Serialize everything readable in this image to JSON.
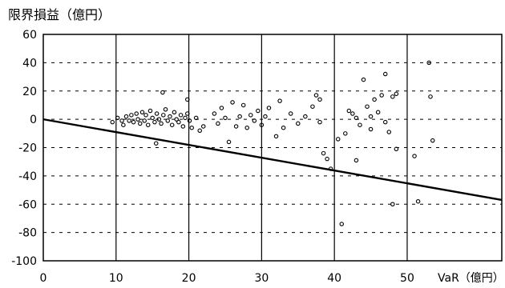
{
  "colors": {
    "axis": "#000000",
    "grid_dash": "#000000",
    "grid_solid": "#000000",
    "points": "#000000"
  },
  "chart_data": {
    "type": "scatter",
    "title": "",
    "ylabel": "限界損益（億円）",
    "xlabel": "VaR（億円）",
    "xlim": [
      0,
      63
    ],
    "ylim": [
      -100,
      60
    ],
    "x_ticks": [
      0,
      10,
      20,
      30,
      40,
      50
    ],
    "y_ticks": [
      60,
      40,
      20,
      0,
      -20,
      -40,
      -60,
      -80,
      -100
    ],
    "grid": {
      "vertical": "solid",
      "horizontal": "dashed"
    },
    "series": [
      {
        "type": "scatter",
        "points": [
          [
            9.5,
            -2
          ],
          [
            10.2,
            1
          ],
          [
            10.8,
            -1
          ],
          [
            11.0,
            -4
          ],
          [
            11.4,
            2
          ],
          [
            11.8,
            -1
          ],
          [
            12.1,
            3
          ],
          [
            12.4,
            -2
          ],
          [
            12.8,
            4
          ],
          [
            13.0,
            0
          ],
          [
            13.3,
            -3
          ],
          [
            13.6,
            5
          ],
          [
            13.9,
            -1
          ],
          [
            14.1,
            3
          ],
          [
            14.4,
            -4
          ],
          [
            14.7,
            6
          ],
          [
            15.0,
            1
          ],
          [
            15.3,
            -2
          ],
          [
            15.6,
            4
          ],
          [
            15.9,
            0
          ],
          [
            16.2,
            -3
          ],
          [
            16.5,
            3
          ],
          [
            16.8,
            7
          ],
          [
            17.1,
            -1
          ],
          [
            17.4,
            2
          ],
          [
            17.7,
            -4
          ],
          [
            18.0,
            5
          ],
          [
            18.3,
            0
          ],
          [
            18.6,
            -2
          ],
          [
            18.9,
            3
          ],
          [
            19.2,
            -5
          ],
          [
            19.5,
            1
          ],
          [
            19.8,
            4
          ],
          [
            20.1,
            -1
          ],
          [
            20.4,
            -6
          ],
          [
            15.5,
            -17
          ],
          [
            16.4,
            19
          ],
          [
            19.8,
            14
          ],
          [
            21.0,
            1
          ],
          [
            21.5,
            -8
          ],
          [
            22.0,
            -5
          ],
          [
            23.5,
            4
          ],
          [
            24.0,
            -3
          ],
          [
            24.5,
            8
          ],
          [
            25.0,
            1
          ],
          [
            25.5,
            -16
          ],
          [
            26.0,
            12
          ],
          [
            26.5,
            -5
          ],
          [
            27.0,
            2
          ],
          [
            27.5,
            10
          ],
          [
            28.0,
            -6
          ],
          [
            28.5,
            3
          ],
          [
            29.0,
            -1
          ],
          [
            29.5,
            6
          ],
          [
            30.0,
            -4
          ],
          [
            30.5,
            2
          ],
          [
            31.0,
            8
          ],
          [
            32.0,
            -12
          ],
          [
            32.5,
            13
          ],
          [
            33.0,
            -6
          ],
          [
            34.0,
            4
          ],
          [
            35.0,
            -3
          ],
          [
            36.0,
            2
          ],
          [
            37.0,
            9
          ],
          [
            37.5,
            17
          ],
          [
            38.0,
            -2
          ],
          [
            38.5,
            -24
          ],
          [
            39.0,
            -28
          ],
          [
            39.5,
            -35
          ],
          [
            38.0,
            14
          ],
          [
            41.0,
            -74
          ],
          [
            42.0,
            6
          ],
          [
            42.5,
            4
          ],
          [
            43.0,
            1
          ],
          [
            43.5,
            -4
          ],
          [
            44.0,
            28
          ],
          [
            44.5,
            9
          ],
          [
            45.0,
            -7
          ],
          [
            45.5,
            14
          ],
          [
            46.0,
            5
          ],
          [
            46.5,
            17
          ],
          [
            47.0,
            32
          ],
          [
            47.5,
            -9
          ],
          [
            48.0,
            16
          ],
          [
            48.5,
            -21
          ],
          [
            48.0,
            -60
          ],
          [
            48.5,
            18
          ],
          [
            43.0,
            -29
          ],
          [
            45.0,
            2
          ],
          [
            47.0,
            -2
          ],
          [
            40.5,
            -14
          ],
          [
            41.5,
            -10
          ],
          [
            51.0,
            -26
          ],
          [
            51.5,
            -58
          ],
          [
            53.0,
            40
          ],
          [
            53.2,
            16
          ],
          [
            53.5,
            -15
          ]
        ]
      },
      {
        "type": "line",
        "points": [
          [
            0,
            0
          ],
          [
            63,
            -57
          ]
        ]
      }
    ]
  }
}
